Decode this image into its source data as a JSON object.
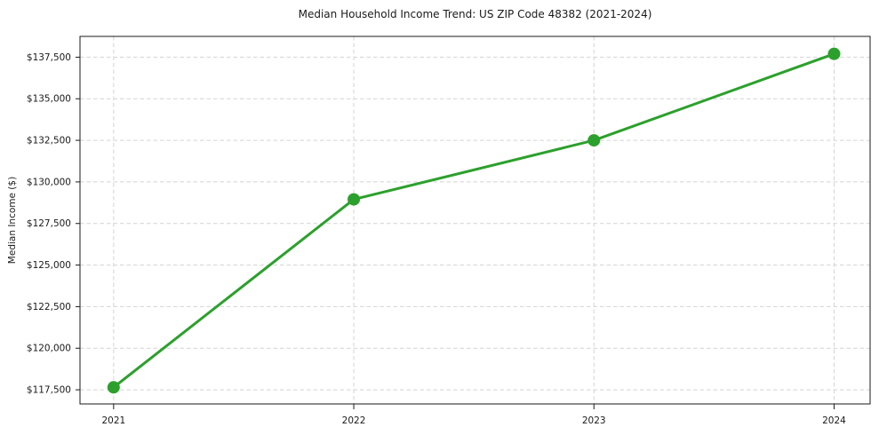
{
  "chart_data": {
    "type": "line",
    "title": "Median Household Income Trend: US ZIP Code 48382 (2021-2024)",
    "xlabel": "",
    "ylabel": "Median Income ($)",
    "x": [
      2021,
      2022,
      2023,
      2024
    ],
    "x_tick_labels": [
      "2021",
      "2022",
      "2023",
      "2024"
    ],
    "series": [
      {
        "name": "Median Household Income",
        "values": [
          117650,
          128950,
          132500,
          137700
        ],
        "color": "#2ca02c",
        "marker": "circle",
        "line_width": 3,
        "marker_radius": 7
      }
    ],
    "y_ticks": [
      {
        "value": 117500,
        "label": "$117,500"
      },
      {
        "value": 120000,
        "label": "$120,000"
      },
      {
        "value": 122500,
        "label": "$122,500"
      },
      {
        "value": 125000,
        "label": "$125,000"
      },
      {
        "value": 127500,
        "label": "$127,500"
      },
      {
        "value": 130000,
        "label": "$130,000"
      },
      {
        "value": 132500,
        "label": "$132,500"
      },
      {
        "value": 135000,
        "label": "$135,000"
      },
      {
        "value": 137500,
        "label": "$137,500"
      }
    ],
    "xlim": [
      2020.86,
      2024.15
    ],
    "ylim": [
      116650,
      138750
    ],
    "grid": {
      "visible": true,
      "style": "dashed",
      "axes": "both",
      "color": "#d4d4d4"
    },
    "legend_position": "none",
    "background_color": "#ffffff",
    "axis_color": "#1a1a1a",
    "text_color": "#1a1a1a"
  }
}
